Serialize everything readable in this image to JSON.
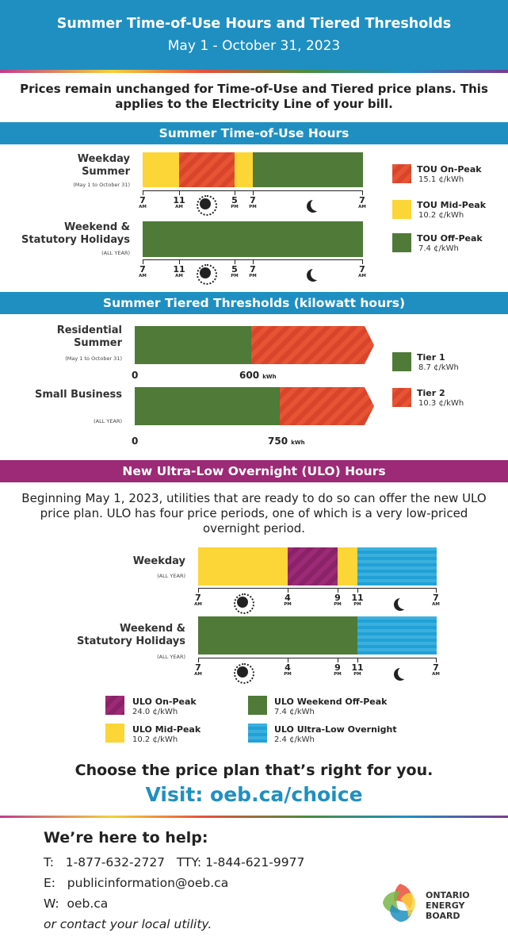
{
  "header": {
    "title": "Summer Time-of-Use Hours and Tiered Thresholds",
    "dates": "May 1 - October 31, 2023"
  },
  "intro": "Prices remain unchanged for Time-of-Use and Tiered price plans. This applies to the Electricity Line of your bill.",
  "tou": {
    "heading": "Summer Time-of-Use Hours",
    "weekday_label": "Weekday Summer",
    "weekday_sub": "(May 1 to October 31)",
    "weekend_label": "Weekend & Statutory Holidays",
    "weekend_sub": "(ALL YEAR)",
    "ticks": [
      {
        "h": "7",
        "p": "AM"
      },
      {
        "h": "11",
        "p": "AM"
      },
      {
        "h": "5",
        "p": "PM"
      },
      {
        "h": "7",
        "p": "PM"
      },
      {
        "h": "7",
        "p": "AM"
      }
    ],
    "legend": [
      {
        "name": "TOU On-Peak",
        "price": "15.1 ¢/kWh"
      },
      {
        "name": "TOU Mid-Peak",
        "price": "10.2 ¢/kWh"
      },
      {
        "name": "TOU Off-Peak",
        "price": "7.4 ¢/kWh"
      }
    ]
  },
  "tiered": {
    "heading": "Summer Tiered Thresholds (kilowatt hours)",
    "residential_label": "Residential Summer",
    "residential_sub": "(May 1 to October 31)",
    "residential_zero": "0",
    "residential_threshold": "600",
    "small_label": "Small Business",
    "small_sub": "(ALL YEAR)",
    "small_zero": "0",
    "small_threshold": "750",
    "unit": "kWh",
    "legend": [
      {
        "name": "Tier 1",
        "price": "8.7 ¢/kWh"
      },
      {
        "name": "Tier 2",
        "price": "10.3 ¢/kWh"
      }
    ]
  },
  "ulo": {
    "heading": "New Ultra-Low Overnight (ULO) Hours",
    "intro": "Beginning May 1, 2023, utilities that are ready to do so can offer the new ULO price plan. ULO has four price periods, one of which is a very low-priced overnight period.",
    "weekday_label": "Weekday",
    "weekday_sub": "(ALL YEAR)",
    "weekend_label": "Weekend & Statutory Holidays",
    "weekend_sub": "(ALL YEAR)",
    "ticks": [
      {
        "h": "7",
        "p": "AM"
      },
      {
        "h": "4",
        "p": "PM"
      },
      {
        "h": "9",
        "p": "PM"
      },
      {
        "h": "11",
        "p": "PM"
      },
      {
        "h": "7",
        "p": "AM"
      }
    ],
    "legend": [
      {
        "name": "ULO On-Peak",
        "price": "24.0 ¢/kWh"
      },
      {
        "name": "ULO Mid-Peak",
        "price": "10.2 ¢/kWh"
      },
      {
        "name": "ULO Weekend Off-Peak",
        "price": "7.4 ¢/kWh"
      },
      {
        "name": "ULO Ultra-Low Overnight",
        "price": "2.4 ¢/kWh"
      }
    ]
  },
  "choose": "Choose the price plan that’s right for you.",
  "visit": "Visit: oeb.ca/choice",
  "help": {
    "title": "We’re here to help:",
    "t_label": "T:",
    "phone": "1-877-632-2727",
    "tty_label": "TTY:",
    "tty": "1-844-621-9977",
    "e_label": "E:",
    "email": "publicinformation@oeb.ca",
    "w_label": "W:",
    "web": "oeb.ca",
    "local": "or contact your local utility."
  },
  "logo": {
    "line1": "ONTARIO",
    "line2": "ENERGY",
    "line3": "BOARD"
  }
}
